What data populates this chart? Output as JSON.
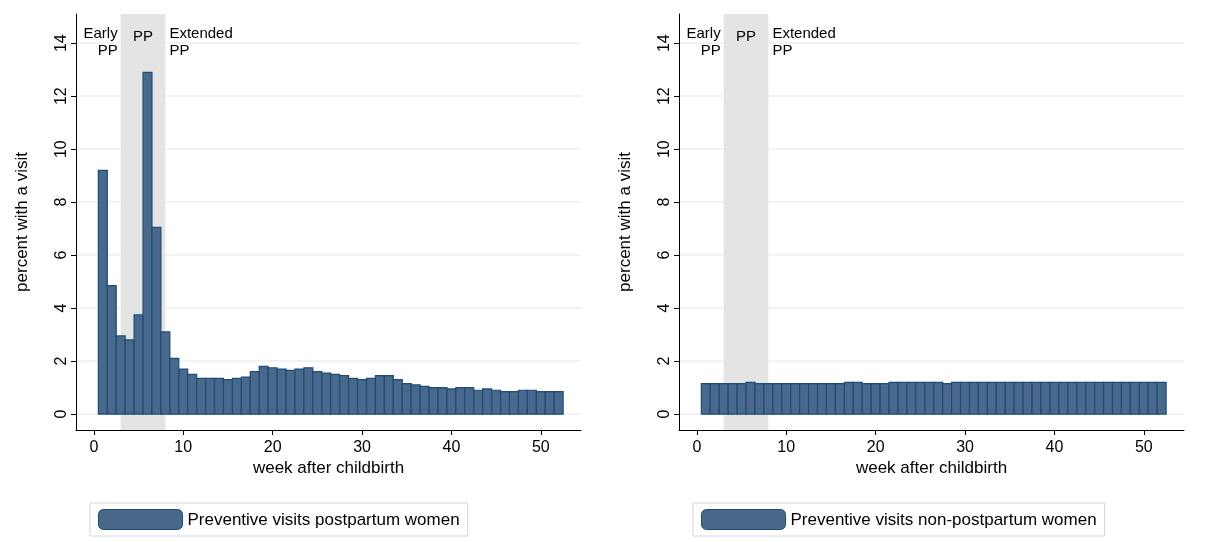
{
  "chart_data": [
    {
      "type": "bar",
      "xlabel": "week after childbirth",
      "ylabel": "percent with a visit",
      "x": [
        1,
        2,
        3,
        4,
        5,
        6,
        7,
        8,
        9,
        10,
        11,
        12,
        13,
        14,
        15,
        16,
        17,
        18,
        19,
        20,
        21,
        22,
        23,
        24,
        25,
        26,
        27,
        28,
        29,
        30,
        31,
        32,
        33,
        34,
        35,
        36,
        37,
        38,
        39,
        40,
        41,
        42,
        43,
        44,
        45,
        46,
        47,
        48,
        49,
        50,
        51,
        52
      ],
      "series": [
        {
          "name": "Preventive visits postpartum women",
          "color": "#48698b",
          "values": [
            9.2,
            4.85,
            2.95,
            2.8,
            3.75,
            12.9,
            7.05,
            3.1,
            2.1,
            1.7,
            1.5,
            1.35,
            1.35,
            1.35,
            1.3,
            1.35,
            1.4,
            1.6,
            1.8,
            1.75,
            1.7,
            1.65,
            1.7,
            1.75,
            1.6,
            1.55,
            1.5,
            1.45,
            1.35,
            1.3,
            1.35,
            1.45,
            1.45,
            1.3,
            1.15,
            1.1,
            1.05,
            1.0,
            1.0,
            0.95,
            1.0,
            1.0,
            0.9,
            0.95,
            0.9,
            0.85,
            0.85,
            0.9,
            0.9,
            0.85,
            0.85,
            0.85
          ]
        }
      ],
      "xlim": [
        -2,
        54.5
      ],
      "xticks": [
        0,
        10,
        20,
        30,
        40,
        50
      ],
      "ylim": [
        -0.6,
        15.1
      ],
      "yticks": [
        0,
        2,
        4,
        6,
        8,
        10,
        12,
        14
      ],
      "bands": [
        {
          "axis": "x",
          "from": 3,
          "to": 8,
          "label": "PP",
          "color": "#e4e4e4"
        }
      ],
      "annotations": [
        "Early\nPP",
        "Extended\nPP"
      ],
      "grid": "y",
      "legend": "bottom"
    },
    {
      "type": "bar",
      "xlabel": "week after childbirth",
      "ylabel": "percent with a visit",
      "x": [
        1,
        2,
        3,
        4,
        5,
        6,
        7,
        8,
        9,
        10,
        11,
        12,
        13,
        14,
        15,
        16,
        17,
        18,
        19,
        20,
        21,
        22,
        23,
        24,
        25,
        26,
        27,
        28,
        29,
        30,
        31,
        32,
        33,
        34,
        35,
        36,
        37,
        38,
        39,
        40,
        41,
        42,
        43,
        44,
        45,
        46,
        47,
        48,
        49,
        50,
        51,
        52
      ],
      "series": [
        {
          "name": "Preventive visits non-postpartum women",
          "color": "#48698b",
          "values": [
            1.15,
            1.15,
            1.15,
            1.15,
            1.15,
            1.2,
            1.15,
            1.15,
            1.15,
            1.15,
            1.15,
            1.15,
            1.15,
            1.15,
            1.15,
            1.15,
            1.2,
            1.2,
            1.15,
            1.15,
            1.15,
            1.2,
            1.2,
            1.2,
            1.2,
            1.2,
            1.2,
            1.15,
            1.2,
            1.2,
            1.2,
            1.2,
            1.2,
            1.2,
            1.2,
            1.2,
            1.2,
            1.2,
            1.2,
            1.2,
            1.2,
            1.2,
            1.2,
            1.2,
            1.2,
            1.2,
            1.2,
            1.2,
            1.2,
            1.2,
            1.2,
            1.2
          ]
        }
      ],
      "xlim": [
        -2,
        54.5
      ],
      "xticks": [
        0,
        10,
        20,
        30,
        40,
        50
      ],
      "ylim": [
        -0.6,
        15.1
      ],
      "yticks": [
        0,
        2,
        4,
        6,
        8,
        10,
        12,
        14
      ],
      "bands": [
        {
          "axis": "x",
          "from": 3,
          "to": 8,
          "label": "PP",
          "color": "#e4e4e4"
        }
      ],
      "annotations": [
        "Early\nPP",
        "Extended\nPP"
      ],
      "grid": "y",
      "legend": "bottom"
    }
  ]
}
